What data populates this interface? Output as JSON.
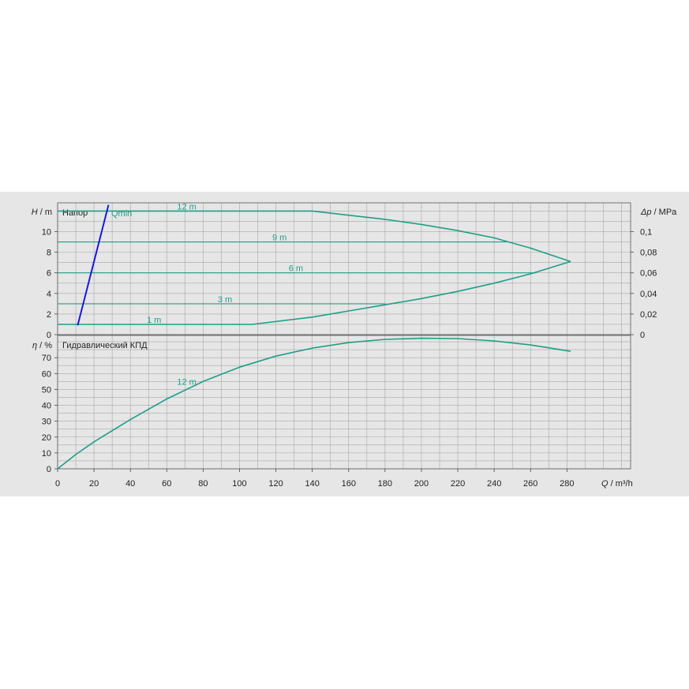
{
  "chart_data": [
    {
      "type": "line",
      "title": "Напор",
      "ylabel_left_symbol": "H",
      "ylabel_left_unit": " / m",
      "ylabel_right_symbol": "Δp",
      "ylabel_right_unit": " / MPa",
      "xlim": [
        0,
        315
      ],
      "ylim": [
        0,
        12.8
      ],
      "yticks": [
        0,
        2,
        4,
        6,
        8,
        10
      ],
      "yticks_right": [
        "0",
        "0,02",
        "0,04",
        "0,06",
        "0,08",
        "0,1"
      ],
      "grid": true,
      "series": [
        {
          "name": "12 m",
          "x": [
            0,
            40,
            80,
            120,
            140,
            160,
            180,
            200,
            220,
            240,
            260,
            282
          ],
          "y": [
            12,
            12,
            12,
            12,
            12,
            11.6,
            11.2,
            10.7,
            10.1,
            9.4,
            8.4,
            7.1
          ]
        },
        {
          "name": "9 m",
          "x": [
            0,
            100,
            200,
            247
          ],
          "y": [
            9,
            9,
            9,
            9
          ]
        },
        {
          "name": "6 m",
          "x": [
            0,
            100,
            200,
            263
          ],
          "y": [
            6,
            6,
            6,
            6
          ]
        },
        {
          "name": "3 m",
          "x": [
            0,
            100,
            180
          ],
          "y": [
            3,
            3,
            3
          ]
        },
        {
          "name": "1 m",
          "x": [
            0,
            40,
            80,
            107,
            140,
            160,
            180,
            200,
            220,
            240,
            260,
            282
          ],
          "y": [
            1,
            1,
            1,
            1,
            1.7,
            2.3,
            2.9,
            3.5,
            4.2,
            5.0,
            5.9,
            7.1
          ]
        },
        {
          "name": "Qmin",
          "x": [
            11,
            28
          ],
          "y": [
            0.9,
            12.6
          ]
        }
      ]
    },
    {
      "type": "line",
      "title": "Гидравлический КПД",
      "ylabel_symbol": "η",
      "ylabel_unit": " / %",
      "xlabel_symbol": "Q",
      "xlabel_unit": " / m³/h",
      "xlim": [
        0,
        315
      ],
      "ylim": [
        0,
        84
      ],
      "xticks": [
        0,
        20,
        40,
        60,
        80,
        100,
        120,
        140,
        160,
        180,
        200,
        220,
        240,
        260,
        280
      ],
      "yticks": [
        0,
        10,
        20,
        30,
        40,
        50,
        60,
        70
      ],
      "grid": true,
      "series": [
        {
          "name": "12 m",
          "x": [
            0,
            10,
            20,
            40,
            60,
            80,
            100,
            120,
            140,
            160,
            180,
            200,
            220,
            240,
            260,
            282
          ],
          "y": [
            0,
            9,
            17,
            31,
            44,
            55,
            64,
            71,
            76,
            79.5,
            81.5,
            82.2,
            82,
            80.5,
            78,
            74
          ]
        }
      ]
    }
  ],
  "colors": {
    "curve": "#1f9e86",
    "qmin": "#1a1adb",
    "grid": "#a8a8a8",
    "plot_bg": "#e6e6e6"
  }
}
